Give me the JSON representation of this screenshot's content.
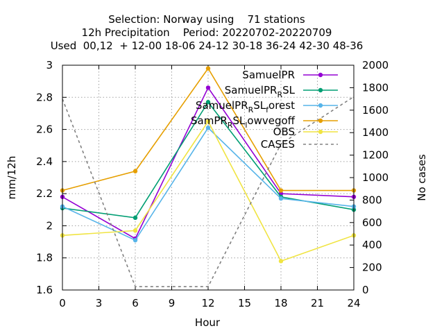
{
  "chart_data": {
    "type": "line",
    "title_lines": [
      "Selection: Norway using    71 stations",
      "12h Precipitation    Period: 20220702-20220709",
      "Used  00,12  + 12-00 18-06 24-12 30-18 36-24 42-30 48-36"
    ],
    "xlabel": "Hour",
    "ylabel": "mm/12h",
    "y2label": "No cases",
    "x": [
      0,
      6,
      12,
      18,
      24
    ],
    "xlim": [
      0,
      24
    ],
    "xticks": [
      "0",
      "3",
      "6",
      "9",
      "12",
      "15",
      "18",
      "21",
      "24"
    ],
    "ylim": [
      1.6,
      3.0
    ],
    "yticks": [
      "1.6",
      "1.8",
      "2",
      "2.2",
      "2.4",
      "2.6",
      "2.8",
      "3"
    ],
    "y2lim": [
      0,
      2000
    ],
    "y2ticks": [
      "0",
      "200",
      "400",
      "600",
      "800",
      "1000",
      "1200",
      "1400",
      "1600",
      "1800",
      "2000"
    ],
    "grid": true,
    "legend_position": "top-right",
    "series": [
      {
        "name": "SamuelPR",
        "legend_main": "SamuelPR",
        "legend_sub": "",
        "legend_tail": "",
        "color": "#9400d3",
        "axis": "y",
        "marker": true,
        "dashed": false,
        "values": [
          2.18,
          1.92,
          2.86,
          2.2,
          2.18
        ]
      },
      {
        "name": "SamuelPR_R SL",
        "legend_main": "SamuelPR",
        "legend_sub": "R",
        "legend_tail": "SL",
        "color": "#009e73",
        "axis": "y",
        "marker": true,
        "dashed": false,
        "values": [
          2.11,
          2.05,
          2.77,
          2.18,
          2.1
        ]
      },
      {
        "name": "SamuelPR_R SL_f orest",
        "legend_main": "SamuelPR",
        "legend_sub": "R",
        "legend_tail": "SL",
        "legend_sub2": "f",
        "legend_tail2": "orest",
        "color": "#56b4e9",
        "axis": "y",
        "marker": true,
        "dashed": false,
        "values": [
          2.12,
          1.91,
          2.61,
          2.17,
          2.12
        ]
      },
      {
        "name": "SamPR_R SL_l owvegoff",
        "legend_main": "SamPR",
        "legend_sub": "R",
        "legend_tail": "SL",
        "legend_sub2": "l",
        "legend_tail2": "owvegoff",
        "color": "#e69f00",
        "axis": "y",
        "marker": true,
        "dashed": false,
        "values": [
          2.22,
          2.34,
          2.98,
          2.22,
          2.22
        ]
      },
      {
        "name": "OBS",
        "legend_main": "OBS",
        "legend_sub": "",
        "legend_tail": "",
        "color": "#f0e442",
        "axis": "y",
        "marker": true,
        "dashed": false,
        "values": [
          1.94,
          1.97,
          2.65,
          1.78,
          1.94
        ]
      },
      {
        "name": "CASES",
        "legend_main": "CASES",
        "legend_sub": "",
        "legend_tail": "",
        "color": "#808080",
        "axis": "y2",
        "marker": false,
        "dashed": true,
        "values": [
          1700,
          30,
          30,
          1300,
          1720
        ]
      }
    ]
  }
}
